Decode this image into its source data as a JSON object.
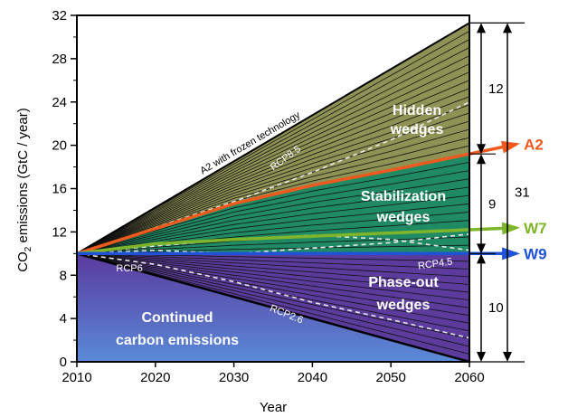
{
  "chart_data": {
    "type": "area",
    "title": "",
    "xlabel": "Year",
    "ylabel": "CO",
    "ylabel_sub": "2",
    "ylabel_rest": " emissions  (GtC / year)",
    "xlim": [
      2010,
      2060
    ],
    "ylim": [
      0,
      32
    ],
    "x_ticks": [
      "2010",
      "2020",
      "2030",
      "2040",
      "2050",
      "2060"
    ],
    "y_ticks": [
      "0",
      "4",
      "8",
      "12",
      "16",
      "20",
      "24",
      "28",
      "32"
    ],
    "grid": false,
    "baseline": {
      "x": [
        2010,
        2060
      ],
      "y": [
        10,
        0
      ]
    },
    "frozen_technology": {
      "name": "A2 with frozen technology",
      "x": [
        2010,
        2060
      ],
      "y": [
        10,
        31.3
      ]
    },
    "series": [
      {
        "name": "A2",
        "color": "#ee5a1e",
        "x": [
          2010,
          2020,
          2030,
          2040,
          2050,
          2060
        ],
        "y": [
          10,
          12.3,
          14.6,
          16.3,
          17.7,
          19.2
        ]
      },
      {
        "name": "W7",
        "color": "#7fb52a",
        "x": [
          2010,
          2020,
          2030,
          2040,
          2050,
          2060
        ],
        "y": [
          10,
          10.9,
          11.3,
          11.6,
          11.9,
          12.2
        ]
      },
      {
        "name": "W9",
        "color": "#1f52d6",
        "x": [
          2010,
          2060
        ],
        "y": [
          10,
          10
        ]
      }
    ],
    "rcp_scenarios": [
      {
        "name": "RCP8.5",
        "x": [
          2010,
          2020,
          2030,
          2040,
          2050,
          2060
        ],
        "y": [
          10,
          12.4,
          14.8,
          17.5,
          20.5,
          24
        ]
      },
      {
        "name": "RCP4.5",
        "x": [
          2010,
          2020,
          2030,
          2040,
          2050,
          2060
        ],
        "y": [
          10,
          10.7,
          11.3,
          11.7,
          11.3,
          10.3
        ]
      },
      {
        "name": "RCP6",
        "x": [
          2010,
          2020,
          2030,
          2040,
          2050,
          2060
        ],
        "y": [
          10,
          10.3,
          10.0,
          10.5,
          11.0,
          11.8
        ]
      },
      {
        "name": "RCP2.6",
        "x": [
          2010,
          2020,
          2030,
          2040,
          2050,
          2060
        ],
        "y": [
          10,
          9.0,
          7.4,
          5.5,
          3.9,
          2.2
        ]
      }
    ],
    "regions": [
      {
        "label_line1": "Hidden",
        "label_line2": "wedges",
        "color": "#8e9254",
        "y_low": "A2",
        "y_high": "frozen_technology",
        "wedge_lines": 16
      },
      {
        "label_line1": "Stabilization",
        "label_line2": "wedges",
        "color": "#1f8a63",
        "y_low": "W9",
        "y_high": "A2",
        "wedge_lines": 12
      },
      {
        "label_line1": "Phase-out",
        "label_line2": "wedges",
        "color": "#5b3c9c",
        "y_low": "baseline",
        "y_high": "W9",
        "wedge_lines": 14
      },
      {
        "label_line1": "Continued",
        "label_line2": "carbon emissions",
        "color_top": "#5a3a9e",
        "color_bottom": "#5a8ad8",
        "y_low": 0,
        "y_high": "baseline"
      }
    ],
    "braces": [
      {
        "label": "12",
        "y_low": 19.2,
        "y_high": 31.3
      },
      {
        "label": "9",
        "y_low": 10,
        "y_high": 19.2
      },
      {
        "label": "10",
        "y_low": 0,
        "y_high": 10
      },
      {
        "label": "31",
        "y_low": 0,
        "y_high": 31.3
      }
    ]
  }
}
